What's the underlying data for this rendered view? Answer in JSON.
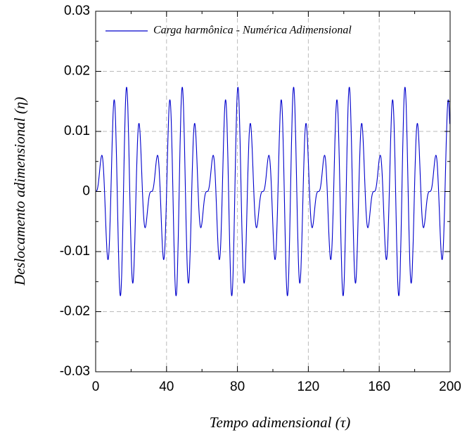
{
  "chart_data": {
    "type": "line",
    "xlabel": "Tempo adimensional (τ)",
    "ylabel": "Deslocamento adimensional (η)",
    "xlim": [
      0,
      200
    ],
    "xticks": [
      0,
      40,
      80,
      120,
      160,
      200
    ],
    "xminorticks": [
      20,
      60,
      100,
      140,
      180
    ],
    "ylim": [
      -0.03,
      0.03
    ],
    "yticks": [
      -0.03,
      -0.02,
      -0.01,
      0,
      0.01,
      0.02,
      0.03
    ],
    "yminorticks": [
      -0.025,
      -0.015,
      -0.005,
      0.005,
      0.015,
      0.025
    ],
    "grid": true,
    "legend": "upper right",
    "x": [
      0,
      0.49,
      0.98,
      1.47,
      1.96,
      2.45,
      2.95,
      3.44,
      3.93,
      4.42,
      4.91,
      5.4,
      5.89,
      6.38,
      6.87,
      7.36,
      7.85,
      8.34,
      8.84,
      9.33,
      9.82,
      10.31,
      10.8,
      11.29,
      11.78,
      12.27,
      12.76,
      13.25,
      13.74,
      14.24,
      14.73,
      15.22,
      15.71,
      16.2,
      16.69,
      17.18,
      17.67,
      18.16,
      18.65,
      19.14,
      19.63,
      20.13,
      20.62,
      21.11,
      21.6,
      22.09,
      22.58,
      23.07,
      23.56,
      24.05,
      24.54,
      25.03,
      25.53,
      26.02,
      26.51,
      27,
      27.49,
      27.98,
      28.47,
      28.96,
      29.45,
      29.94,
      30.43,
      30.93,
      31.42,
      31.91,
      32.4,
      32.89,
      33.38,
      33.87,
      34.36,
      34.85,
      35.34,
      35.83,
      36.32,
      36.82,
      37.31,
      37.8,
      38.29,
      38.78,
      39.27,
      39.76,
      40.25,
      40.74,
      41.23,
      41.72,
      42.22,
      42.71,
      43.2,
      43.69,
      44.18,
      44.67,
      45.16,
      45.65,
      46.14,
      46.63,
      47.12,
      47.61,
      48.11,
      48.6,
      49.09,
      49.58,
      50.07,
      50.56,
      51.05,
      51.54,
      52.03,
      52.52,
      53.01,
      53.51,
      54,
      54.49,
      54.98,
      55.47,
      55.96,
      56.45,
      56.94,
      57.43,
      57.92,
      58.41,
      58.9,
      59.4,
      59.89,
      60.38,
      60.87,
      61.36,
      61.85,
      62.34,
      62.83,
      63.32,
      63.81,
      64.3,
      64.8,
      65.29,
      65.78,
      66.27,
      66.76,
      67.25,
      67.74,
      68.23,
      68.72,
      69.21,
      69.7,
      70.2,
      70.69,
      71.18,
      71.67,
      72.16,
      72.65,
      73.14,
      73.63,
      74.12,
      74.61,
      75.1,
      75.59,
      76.09,
      76.58,
      77.07,
      77.56,
      78.05,
      78.54,
      79.03,
      79.52,
      80.01,
      80.5,
      80.99,
      81.49,
      81.98,
      82.47,
      82.96,
      83.45,
      83.94,
      84.43,
      84.92,
      85.41,
      85.9,
      86.39,
      86.88,
      87.38,
      87.87,
      88.36,
      88.85,
      89.34,
      89.83,
      90.32,
      90.81,
      91.3,
      91.79,
      92.28,
      92.78,
      93.27,
      93.76,
      94.25,
      94.74,
      95.23,
      95.72,
      96.21,
      96.7,
      97.19,
      97.68,
      98.17,
      98.67,
      99.16,
      99.65,
      100.14,
      100.63,
      101.12,
      101.61,
      102.1,
      102.59,
      103.08,
      103.57,
      104.07,
      104.56,
      105.05,
      105.54,
      106.03,
      106.52,
      107.01,
      107.5,
      107.99,
      108.48,
      108.97,
      109.46,
      109.96,
      110.45,
      110.94,
      111.43,
      111.92,
      112.41,
      112.9,
      113.39,
      113.88,
      114.37,
      114.86,
      115.36,
      115.85,
      116.34,
      116.83,
      117.32,
      117.81,
      118.3,
      118.79,
      119.28,
      119.77,
      120.26,
      120.76,
      121.25,
      121.74,
      122.23,
      122.72,
      123.21,
      123.7,
      124.19,
      124.68,
      125.17,
      125.66,
      126.15,
      126.65,
      127.14,
      127.63,
      128.12,
      128.61,
      129.1,
      129.59,
      130.08,
      130.57,
      131.06,
      131.55,
      132.05,
      132.54,
      133.03,
      133.52,
      134.01,
      134.5,
      134.99,
      135.48,
      135.97,
      136.46,
      136.95,
      137.44,
      137.94,
      138.43,
      138.92,
      139.41,
      139.9,
      140.39,
      140.88,
      141.37,
      141.86,
      142.35,
      142.84,
      143.34,
      143.83,
      144.32,
      144.81,
      145.3,
      145.79,
      146.28,
      146.77,
      147.26,
      147.75,
      148.24,
      148.73,
      149.23,
      149.72,
      150.21,
      150.7,
      151.19,
      151.68,
      152.17,
      152.66,
      153.15,
      153.64,
      154.13,
      154.63,
      155.12,
      155.61,
      156.1,
      156.59,
      157.08,
      157.57,
      158.06,
      158.55,
      159.04,
      159.53,
      160.02,
      160.52,
      161.01,
      161.5,
      161.99,
      162.48,
      162.97,
      163.46,
      163.95,
      164.44,
      164.93,
      165.42,
      165.92,
      166.41,
      166.9,
      167.39,
      167.88,
      168.37,
      168.86,
      169.35,
      169.84,
      170.33,
      170.82,
      171.31,
      171.81,
      172.3,
      172.79,
      173.28,
      173.77,
      174.26,
      174.75,
      175.24,
      175.73,
      176.22,
      176.71,
      177.21,
      177.7,
      178.19,
      178.68,
      179.17,
      179.66,
      180.15,
      180.64,
      181.13,
      181.62,
      182.11,
      182.61,
      183.1,
      183.59,
      184.08,
      184.57,
      185.06,
      185.55,
      186.04,
      186.53,
      187.02,
      187.51,
      188,
      188.5,
      188.99,
      189.48,
      189.97,
      190.46,
      190.95,
      191.44,
      191.93,
      192.42,
      192.91,
      193.4,
      193.9,
      194.39,
      194.88,
      195.37,
      195.86,
      196.35,
      196.84,
      197.33,
      197.82,
      198.31,
      198.8,
      199.29,
      199.79
    ],
    "series": [
      {
        "name": "Carga harmônica - Numérica Adimensional",
        "color": "#0000cc",
        "values": [
          0,
          5e-05,
          0.00041,
          0.00125,
          0.00256,
          0.00408,
          0.0054,
          0.00603,
          0.00554,
          0.00375,
          0.00076,
          -0.00299,
          -0.0068,
          -0.00982,
          -0.01129,
          -0.01066,
          -0.00784,
          -0.00316,
          0.00257,
          0.00829,
          0.0128,
          0.01511,
          0.01462,
          0.01125,
          0.00554,
          -0.00147,
          -0.00846,
          -0.01403,
          -0.01704,
          -0.01686,
          -0.01345,
          -0.00745,
          0,
          0.00745,
          0.01345,
          0.01686,
          0.01704,
          0.01403,
          0.00846,
          0.00147,
          -0.00554,
          -0.01125,
          -0.01462,
          -0.01511,
          -0.0128,
          -0.00829,
          -0.00257,
          0.00316,
          0.00784,
          0.01066,
          0.01129,
          0.00982,
          0.0068,
          0.00299,
          -0.00076,
          -0.00375,
          -0.00554,
          -0.00603,
          -0.0054,
          -0.00408,
          -0.00256,
          -0.00125,
          -0.00041,
          -5e-05,
          0,
          5e-05,
          0.00041,
          0.00125,
          0.00256,
          0.00408,
          0.0054,
          0.00603,
          0.00554,
          0.00375,
          0.00076,
          -0.00299,
          -0.0068,
          -0.00982,
          -0.01129,
          -0.01066,
          -0.00784,
          -0.00316,
          0.00257,
          0.00829,
          0.0128,
          0.01511,
          0.01462,
          0.01125,
          0.00554,
          -0.00147,
          -0.00846,
          -0.01403,
          -0.01704,
          -0.01686,
          -0.01345,
          -0.00745,
          0,
          0.00745,
          0.01345,
          0.01686,
          0.01704,
          0.01403,
          0.00846,
          0.00147,
          -0.00554,
          -0.01125,
          -0.01462,
          -0.01511,
          -0.0128,
          -0.00829,
          -0.00257,
          0.00316,
          0.00784,
          0.01066,
          0.01129,
          0.00982,
          0.0068,
          0.00299,
          -0.00076,
          -0.00375,
          -0.00554,
          -0.00603,
          -0.0054,
          -0.00408,
          -0.00256,
          -0.00125,
          -0.00041,
          -5e-05,
          0,
          5e-05,
          0.00041,
          0.00125,
          0.00256,
          0.00408,
          0.0054,
          0.00603,
          0.00554,
          0.00375,
          0.00076,
          -0.00299,
          -0.0068,
          -0.00982,
          -0.01129,
          -0.01066,
          -0.00784,
          -0.00316,
          0.00257,
          0.00829,
          0.0128,
          0.01511,
          0.01462,
          0.01125,
          0.00554,
          -0.00147,
          -0.00846,
          -0.01403,
          -0.01704,
          -0.01686,
          -0.01345,
          -0.00745,
          0,
          0.00745,
          0.01345,
          0.01686,
          0.01704,
          0.01403,
          0.00846,
          0.00147,
          -0.00554,
          -0.01125,
          -0.01462,
          -0.01511,
          -0.0128,
          -0.00829,
          -0.00257,
          0.00316,
          0.00784,
          0.01066,
          0.01129,
          0.00982,
          0.0068,
          0.00299,
          -0.00076,
          -0.00375,
          -0.00554,
          -0.00603,
          -0.0054,
          -0.00408,
          -0.00256,
          -0.00125,
          -0.00041,
          -5e-05,
          0,
          5e-05,
          0.00041,
          0.00125,
          0.00256,
          0.00408,
          0.0054,
          0.00603,
          0.00554,
          0.00375,
          0.00076,
          -0.00299,
          -0.0068,
          -0.00982,
          -0.01129,
          -0.01066,
          -0.00784,
          -0.00316,
          0.00257,
          0.00829,
          0.0128,
          0.01511,
          0.01462,
          0.01125,
          0.00554,
          -0.00147,
          -0.00846,
          -0.01403,
          -0.01704,
          -0.01686,
          -0.01345,
          -0.00745,
          0,
          0.00745,
          0.01345,
          0.01686,
          0.01704,
          0.01403,
          0.00846,
          0.00147,
          -0.00554,
          -0.01125,
          -0.01462,
          -0.01511,
          -0.0128,
          -0.00829,
          -0.00257,
          0.00316,
          0.00784,
          0.01066,
          0.01129,
          0.00982,
          0.0068,
          0.00299,
          -0.00076,
          -0.00375,
          -0.00554,
          -0.00603,
          -0.0054,
          -0.00408,
          -0.00256,
          -0.00125,
          -0.00041,
          -5e-05,
          0,
          5e-05,
          0.00041,
          0.00125,
          0.00256,
          0.00408,
          0.0054,
          0.00603,
          0.00554,
          0.00375,
          0.00076,
          -0.00299,
          -0.0068,
          -0.00982,
          -0.01129,
          -0.01066,
          -0.00784,
          -0.00316,
          0.00257,
          0.00829,
          0.0128,
          0.01511,
          0.01462,
          0.01125,
          0.00554,
          -0.00147,
          -0.00846,
          -0.01403,
          -0.01704,
          -0.01686,
          -0.01345,
          -0.00745,
          0,
          0.00745,
          0.01345,
          0.01686,
          0.01704,
          0.01403,
          0.00846,
          0.00147,
          -0.00554,
          -0.01125,
          -0.01462,
          -0.01511,
          -0.0128,
          -0.00829,
          -0.00257,
          0.00316,
          0.00784,
          0.01066,
          0.01129,
          0.00982,
          0.0068,
          0.00299,
          -0.00076,
          -0.00375,
          -0.00554,
          -0.00603,
          -0.0054,
          -0.00408,
          -0.00256,
          -0.00125,
          -0.00041,
          -5e-05,
          0,
          5e-05,
          0.00041,
          0.00125,
          0.00256,
          0.00408,
          0.0054,
          0.00603,
          0.00554,
          0.00375,
          0.00076,
          -0.00299,
          -0.0068,
          -0.00982,
          -0.01129,
          -0.01066,
          -0.00784,
          -0.00316,
          0.00257,
          0.00829,
          0.0128,
          0.01511,
          0.01462,
          0.01125,
          0.00554,
          -0.00147,
          -0.00846,
          -0.01403,
          -0.01704,
          -0.01686,
          -0.01345,
          -0.00745,
          0,
          0.00745,
          0.01345,
          0.01686,
          0.01704,
          0.01403,
          0.00846,
          0.00147,
          -0.00554,
          -0.01125,
          -0.01462,
          -0.01511,
          -0.0128,
          -0.00829,
          -0.00257,
          0.00316,
          0.00784,
          0.01066,
          0.01129,
          0.00982,
          0.0068,
          0.00299,
          -0.00076,
          -0.00375,
          -0.00554,
          -0.00603,
          -0.0054,
          -0.00408,
          -0.00256,
          -0.00125,
          -0.00041,
          -5e-05,
          0,
          5e-05,
          0.00041,
          0.00125,
          0.00256,
          0.00408,
          0.0054,
          0.00603,
          0.00554,
          0.00375,
          0.00076,
          -0.00299,
          -0.0068,
          -0.00982,
          -0.01129,
          -0.01066,
          -0.00784,
          -0.00316,
          0.00257,
          0.00829,
          0.0128,
          0.01511,
          0.01462,
          0.01125
        ]
      }
    ]
  }
}
